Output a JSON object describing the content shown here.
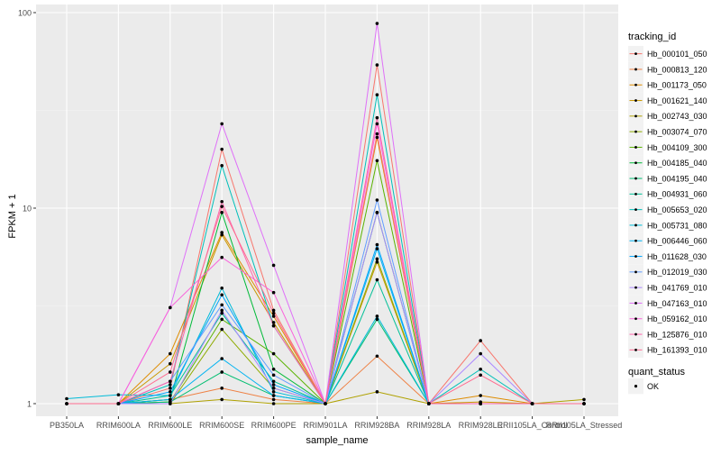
{
  "chart_data": {
    "type": "line",
    "xlabel": "sample_name",
    "ylabel": "FPKM + 1",
    "y_scale": "log10",
    "ylim": [
      1,
      100
    ],
    "y_ticks": [
      1,
      10,
      100
    ],
    "y_tick_labels": [
      "1",
      "10",
      "100"
    ],
    "categories": [
      "PB350LA",
      "RRIM600LA",
      "RRIM600LE",
      "RRIM600SE",
      "RRIM600PE",
      "RRIM901LA",
      "RRIM928BA",
      "RRIM928LA",
      "RRIM928LE",
      "RRII105LA_Control",
      "RRII105LA_Stressed"
    ],
    "grid": true,
    "legend": {
      "title": "tracking_id",
      "placement": "right"
    },
    "shape_legend": {
      "title": "quant_status",
      "items": [
        "OK"
      ]
    },
    "colors": {
      "panel_bg": "#EBEBEB",
      "grid_major": "#FFFFFF",
      "point": "#000000",
      "text_dark": "#000000",
      "text_tick": "#4D4D4D",
      "tick_mark": "#333333",
      "legend_key_bg": "#F2F2F2"
    },
    "series": [
      {
        "name": "Hb_000101_050",
        "color": "#F8766D",
        "values": [
          1.0,
          1.0,
          1.2,
          20.0,
          3.0,
          1.0,
          54.0,
          1.0,
          2.1,
          1.0,
          1.0
        ]
      },
      {
        "name": "Hb_000813_120",
        "color": "#EE8043",
        "values": [
          1.0,
          1.0,
          1.05,
          1.2,
          1.05,
          1.0,
          1.75,
          1.0,
          1.0,
          1.0,
          1.0
        ]
      },
      {
        "name": "Hb_001173_050",
        "color": "#DE8C00",
        "values": [
          1.0,
          1.0,
          1.8,
          7.5,
          2.8,
          1.0,
          23.0,
          1.0,
          1.1,
          1.0,
          1.0
        ]
      },
      {
        "name": "Hb_001621_140",
        "color": "#C99800",
        "values": [
          1.0,
          1.0,
          1.6,
          7.3,
          2.6,
          1.0,
          5.3,
          1.0,
          1.02,
          1.0,
          1.0
        ]
      },
      {
        "name": "Hb_002743_030",
        "color": "#AFA100",
        "values": [
          1.0,
          1.0,
          1.0,
          1.05,
          1.0,
          1.0,
          1.15,
          1.0,
          1.0,
          1.0,
          1.05
        ]
      },
      {
        "name": "Hb_003074_070",
        "color": "#8EAB00",
        "values": [
          1.0,
          1.0,
          1.0,
          2.4,
          1.2,
          1.0,
          5.5,
          1.0,
          1.0,
          1.0,
          1.0
        ]
      },
      {
        "name": "Hb_004109_300",
        "color": "#5AB300",
        "values": [
          1.0,
          1.0,
          1.02,
          2.7,
          1.8,
          1.0,
          17.5,
          1.0,
          1.0,
          1.0,
          1.0
        ]
      },
      {
        "name": "Hb_004185_040",
        "color": "#00BA38",
        "values": [
          1.0,
          1.0,
          1.05,
          9.5,
          1.5,
          1.0,
          9.5,
          1.0,
          1.0,
          1.0,
          1.0
        ]
      },
      {
        "name": "Hb_004195_040",
        "color": "#00BE70",
        "values": [
          1.0,
          1.0,
          1.02,
          1.45,
          1.1,
          1.0,
          2.7,
          1.0,
          1.0,
          1.0,
          1.0
        ]
      },
      {
        "name": "Hb_004931_060",
        "color": "#00C097",
        "values": [
          1.0,
          1.0,
          1.1,
          2.9,
          1.3,
          1.0,
          4.3,
          1.0,
          1.0,
          1.0,
          1.0
        ]
      },
      {
        "name": "Hb_005653_020",
        "color": "#00BFB9",
        "values": [
          1.0,
          1.0,
          1.25,
          16.5,
          2.5,
          1.0,
          38.0,
          1.0,
          1.5,
          1.0,
          1.0
        ]
      },
      {
        "name": "Hb_005731_080",
        "color": "#00BBD8",
        "values": [
          1.06,
          1.11,
          1.1,
          3.9,
          1.15,
          1.0,
          2.8,
          1.0,
          1.0,
          1.0,
          1.0
        ]
      },
      {
        "name": "Hb_006446_060",
        "color": "#00B3F1",
        "values": [
          1.0,
          1.0,
          1.05,
          1.7,
          1.1,
          1.0,
          6.2,
          1.0,
          1.0,
          1.0,
          1.0
        ]
      },
      {
        "name": "Hb_011628_030",
        "color": "#00A5FF",
        "values": [
          1.0,
          1.0,
          1.15,
          3.6,
          1.25,
          1.0,
          6.5,
          1.0,
          1.0,
          1.0,
          1.0
        ]
      },
      {
        "name": "Hb_012019_030",
        "color": "#619CFF",
        "values": [
          1.0,
          1.0,
          1.3,
          3.2,
          1.4,
          1.0,
          11.0,
          1.0,
          1.0,
          1.0,
          1.0
        ]
      },
      {
        "name": "Hb_041769_010",
        "color": "#AC88FF",
        "values": [
          1.0,
          1.0,
          1.0,
          3.0,
          1.2,
          1.0,
          9.5,
          1.0,
          1.8,
          1.0,
          1.0
        ]
      },
      {
        "name": "Hb_047163_010",
        "color": "#DF70F8",
        "values": [
          1.0,
          1.0,
          3.1,
          27.0,
          5.1,
          1.0,
          88.0,
          1.0,
          1.0,
          1.0,
          1.0
        ]
      },
      {
        "name": "Hb_059162_010",
        "color": "#FA62DB",
        "values": [
          1.0,
          1.0,
          3.1,
          5.6,
          3.7,
          1.0,
          27.0,
          1.0,
          1.0,
          1.0,
          1.0
        ]
      },
      {
        "name": "Hb_125876_010",
        "color": "#FF65AC",
        "values": [
          1.0,
          1.0,
          1.3,
          10.8,
          2.5,
          1.0,
          29.0,
          1.0,
          1.0,
          1.0,
          1.0
        ]
      },
      {
        "name": "Hb_161393_010",
        "color": "#FF6C91",
        "values": [
          1.0,
          1.0,
          1.45,
          10.2,
          2.9,
          1.0,
          24.0,
          1.0,
          1.4,
          1.0,
          1.0
        ]
      }
    ]
  }
}
